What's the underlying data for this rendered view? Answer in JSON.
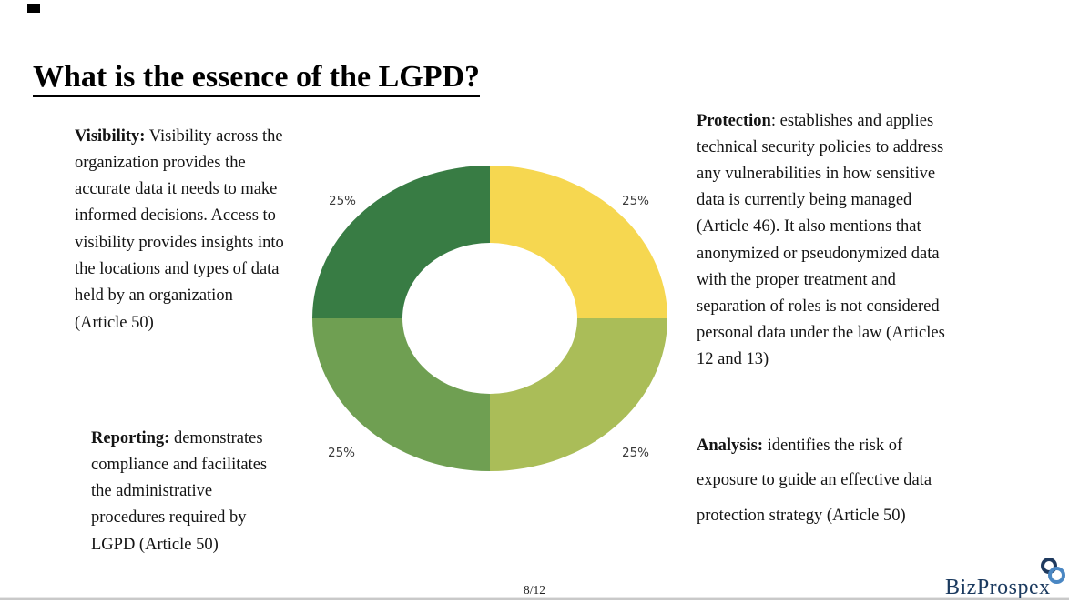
{
  "slide": {
    "title": "What is the essence of the LGPD?",
    "page_number": "8/12",
    "brand": "BizProspex"
  },
  "blocks": {
    "visibility": {
      "heading": "Visibility:",
      "body": " Visibility across the\norganization provides the\naccurate data it needs to make\ninformed decisions. Access to\nvisibility provides insights into\nthe locations and types of data\nheld by an organization\n(Article 50)"
    },
    "protection": {
      "heading": "Protection",
      "body": ": establishes and applies\ntechnical security policies to address\nany vulnerabilities in how sensitive\ndata is currently being managed\n(Article 46). It also mentions that\nanonymized or pseudonymized data\nwith the proper treatment and\nseparation of roles is not considered\npersonal data under the law (Articles\n12 and 13)"
    },
    "reporting": {
      "heading": "Reporting:",
      "body": " demonstrates\ncompliance and facilitates\nthe administrative\nprocedures required by\nLGPD (Article 50)"
    },
    "analysis": {
      "heading": "Analysis:",
      "body": " identifies the risk of\nexposure to guide an effective data\nprotection strategy (Article 50)"
    }
  },
  "chart_data": {
    "type": "pie",
    "subtype": "donut",
    "title": "",
    "legend": "none",
    "segments": [
      {
        "name": "Protection (top-right)",
        "value": 25,
        "label": "25%",
        "color": "#f6d750"
      },
      {
        "name": "Analysis (bottom-right)",
        "value": 25,
        "label": "25%",
        "color": "#aabd58"
      },
      {
        "name": "Reporting (bottom-left)",
        "value": 25,
        "label": "25%",
        "color": "#6f9f52"
      },
      {
        "name": "Visibility (top-left)",
        "value": 25,
        "label": "25%",
        "color": "#387c44"
      }
    ],
    "labels": {
      "top_left": "25%",
      "top_right": "25%",
      "bottom_left": "25%",
      "bottom_right": "25%"
    }
  },
  "colors": {
    "brand_navy": "#1b3a5f",
    "ring_dark_blue": "#1f3a5e",
    "ring_light_blue": "#4a87c3",
    "divider_gray": "#c9c9c9"
  }
}
